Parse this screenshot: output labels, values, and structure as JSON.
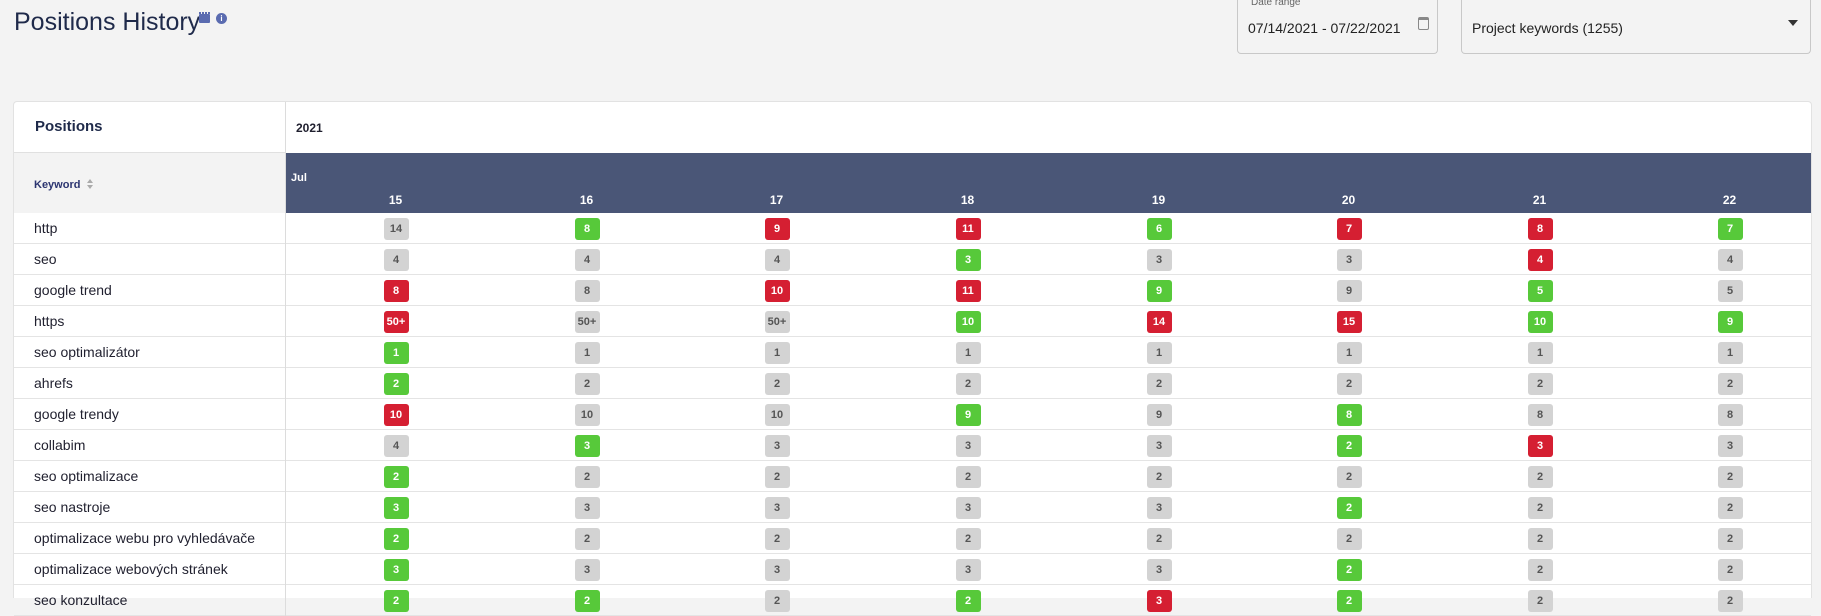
{
  "header": {
    "title": "Positions History",
    "date_range_label": "Date range",
    "date_range_value": "07/14/2021 - 07/22/2021",
    "project_select_value": "Project keywords (1255)"
  },
  "table": {
    "positions_label": "Positions",
    "keyword_col_label": "Keyword",
    "year": "2021",
    "month": "Jul",
    "days": [
      "15",
      "16",
      "17",
      "18",
      "19",
      "20",
      "21",
      "22"
    ],
    "colors": {
      "gray": "#d3d3d3",
      "green": "#57c93a",
      "red": "#d51f32",
      "header_bg": "#4a5677"
    },
    "rows": [
      {
        "keyword": "http",
        "cells": [
          {
            "v": "14",
            "c": "gray"
          },
          {
            "v": "8",
            "c": "green"
          },
          {
            "v": "9",
            "c": "red"
          },
          {
            "v": "11",
            "c": "red"
          },
          {
            "v": "6",
            "c": "green"
          },
          {
            "v": "7",
            "c": "red"
          },
          {
            "v": "8",
            "c": "red"
          },
          {
            "v": "7",
            "c": "green"
          }
        ]
      },
      {
        "keyword": "seo",
        "cells": [
          {
            "v": "4",
            "c": "gray"
          },
          {
            "v": "4",
            "c": "gray"
          },
          {
            "v": "4",
            "c": "gray"
          },
          {
            "v": "3",
            "c": "green"
          },
          {
            "v": "3",
            "c": "gray"
          },
          {
            "v": "3",
            "c": "gray"
          },
          {
            "v": "4",
            "c": "red"
          },
          {
            "v": "4",
            "c": "gray"
          }
        ]
      },
      {
        "keyword": "google trend",
        "cells": [
          {
            "v": "8",
            "c": "red"
          },
          {
            "v": "8",
            "c": "gray"
          },
          {
            "v": "10",
            "c": "red"
          },
          {
            "v": "11",
            "c": "red"
          },
          {
            "v": "9",
            "c": "green"
          },
          {
            "v": "9",
            "c": "gray"
          },
          {
            "v": "5",
            "c": "green"
          },
          {
            "v": "5",
            "c": "gray"
          }
        ]
      },
      {
        "keyword": "https",
        "cells": [
          {
            "v": "50+",
            "c": "red"
          },
          {
            "v": "50+",
            "c": "gray"
          },
          {
            "v": "50+",
            "c": "gray"
          },
          {
            "v": "10",
            "c": "green"
          },
          {
            "v": "14",
            "c": "red"
          },
          {
            "v": "15",
            "c": "red"
          },
          {
            "v": "10",
            "c": "green"
          },
          {
            "v": "9",
            "c": "green"
          }
        ]
      },
      {
        "keyword": "seo optimalizátor",
        "cells": [
          {
            "v": "1",
            "c": "green"
          },
          {
            "v": "1",
            "c": "gray"
          },
          {
            "v": "1",
            "c": "gray"
          },
          {
            "v": "1",
            "c": "gray"
          },
          {
            "v": "1",
            "c": "gray"
          },
          {
            "v": "1",
            "c": "gray"
          },
          {
            "v": "1",
            "c": "gray"
          },
          {
            "v": "1",
            "c": "gray"
          }
        ]
      },
      {
        "keyword": "ahrefs",
        "cells": [
          {
            "v": "2",
            "c": "green"
          },
          {
            "v": "2",
            "c": "gray"
          },
          {
            "v": "2",
            "c": "gray"
          },
          {
            "v": "2",
            "c": "gray"
          },
          {
            "v": "2",
            "c": "gray"
          },
          {
            "v": "2",
            "c": "gray"
          },
          {
            "v": "2",
            "c": "gray"
          },
          {
            "v": "2",
            "c": "gray"
          }
        ]
      },
      {
        "keyword": "google trendy",
        "cells": [
          {
            "v": "10",
            "c": "red"
          },
          {
            "v": "10",
            "c": "gray"
          },
          {
            "v": "10",
            "c": "gray"
          },
          {
            "v": "9",
            "c": "green"
          },
          {
            "v": "9",
            "c": "gray"
          },
          {
            "v": "8",
            "c": "green"
          },
          {
            "v": "8",
            "c": "gray"
          },
          {
            "v": "8",
            "c": "gray"
          }
        ]
      },
      {
        "keyword": "collabim",
        "cells": [
          {
            "v": "4",
            "c": "gray"
          },
          {
            "v": "3",
            "c": "green"
          },
          {
            "v": "3",
            "c": "gray"
          },
          {
            "v": "3",
            "c": "gray"
          },
          {
            "v": "3",
            "c": "gray"
          },
          {
            "v": "2",
            "c": "green"
          },
          {
            "v": "3",
            "c": "red"
          },
          {
            "v": "3",
            "c": "gray"
          }
        ]
      },
      {
        "keyword": "seo optimalizace",
        "cells": [
          {
            "v": "2",
            "c": "green"
          },
          {
            "v": "2",
            "c": "gray"
          },
          {
            "v": "2",
            "c": "gray"
          },
          {
            "v": "2",
            "c": "gray"
          },
          {
            "v": "2",
            "c": "gray"
          },
          {
            "v": "2",
            "c": "gray"
          },
          {
            "v": "2",
            "c": "gray"
          },
          {
            "v": "2",
            "c": "gray"
          }
        ]
      },
      {
        "keyword": "seo nastroje",
        "cells": [
          {
            "v": "3",
            "c": "green"
          },
          {
            "v": "3",
            "c": "gray"
          },
          {
            "v": "3",
            "c": "gray"
          },
          {
            "v": "3",
            "c": "gray"
          },
          {
            "v": "3",
            "c": "gray"
          },
          {
            "v": "2",
            "c": "green"
          },
          {
            "v": "2",
            "c": "gray"
          },
          {
            "v": "2",
            "c": "gray"
          }
        ]
      },
      {
        "keyword": "optimalizace webu pro vyhledávače",
        "cells": [
          {
            "v": "2",
            "c": "green"
          },
          {
            "v": "2",
            "c": "gray"
          },
          {
            "v": "2",
            "c": "gray"
          },
          {
            "v": "2",
            "c": "gray"
          },
          {
            "v": "2",
            "c": "gray"
          },
          {
            "v": "2",
            "c": "gray"
          },
          {
            "v": "2",
            "c": "gray"
          },
          {
            "v": "2",
            "c": "gray"
          }
        ]
      },
      {
        "keyword": "optimalizace webových stránek",
        "cells": [
          {
            "v": "3",
            "c": "green"
          },
          {
            "v": "3",
            "c": "gray"
          },
          {
            "v": "3",
            "c": "gray"
          },
          {
            "v": "3",
            "c": "gray"
          },
          {
            "v": "3",
            "c": "gray"
          },
          {
            "v": "2",
            "c": "green"
          },
          {
            "v": "2",
            "c": "gray"
          },
          {
            "v": "2",
            "c": "gray"
          }
        ]
      },
      {
        "keyword": "seo konzultace",
        "cells": [
          {
            "v": "2",
            "c": "green"
          },
          {
            "v": "2",
            "c": "green"
          },
          {
            "v": "2",
            "c": "gray"
          },
          {
            "v": "2",
            "c": "green"
          },
          {
            "v": "3",
            "c": "red"
          },
          {
            "v": "2",
            "c": "green"
          },
          {
            "v": "2",
            "c": "gray"
          },
          {
            "v": "2",
            "c": "gray"
          }
        ]
      }
    ]
  }
}
